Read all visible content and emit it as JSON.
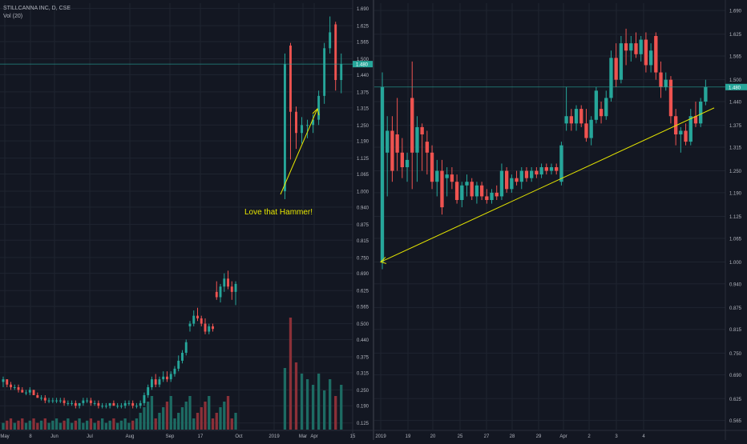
{
  "header": {
    "symbol": "STILLCANNA INC, D, CSE",
    "volume_label": "Vol (20)"
  },
  "annotation": "Love that Hammer!",
  "colors": {
    "background": "#131722",
    "grid": "#1f2430",
    "up": "#26a69a",
    "down": "#ef5350",
    "up_volume": "#1d6b63",
    "down_volume": "#8b3038",
    "annotation": "#e6e600",
    "trendline": "#e6e600",
    "price_line": "#26a69a",
    "axis_text": "#b2b5be"
  },
  "chart_data": [
    {
      "type": "candlestick",
      "pane": "left",
      "interval": "D",
      "y_ticks": [
        "1.690",
        "1.625",
        "1.565",
        "1.500",
        "1.440",
        "1.375",
        "1.315",
        "1.250",
        "1.190",
        "1.125",
        "1.065",
        "1.000",
        "0.940",
        "0.875",
        "0.815",
        "0.750",
        "0.690",
        "0.625",
        "0.565",
        "0.500",
        "0.440",
        "0.375",
        "0.315",
        "0.250",
        "0.190",
        "0.125"
      ],
      "ylim": [
        0.1,
        1.71
      ],
      "x_ticks": [
        "May",
        "8",
        "Jun",
        "Jul",
        "Aug",
        "Sep",
        "17",
        "Oct",
        "2019",
        "Mar",
        "Apr",
        "15"
      ],
      "last_price": "1.480",
      "candles_summary": "2018 low-price base (0.17–0.29), rally Sep–Oct to ~0.68, gap to 2019 with hammer at ~1.00 then up to ~1.65",
      "candles": [
        {
          "o": 0.28,
          "h": 0.3,
          "l": 0.26,
          "c": 0.29
        },
        {
          "o": 0.29,
          "h": 0.29,
          "l": 0.26,
          "c": 0.27
        },
        {
          "o": 0.27,
          "h": 0.28,
          "l": 0.25,
          "c": 0.26
        },
        {
          "o": 0.26,
          "h": 0.27,
          "l": 0.25,
          "c": 0.26
        },
        {
          "o": 0.26,
          "h": 0.27,
          "l": 0.24,
          "c": 0.25
        },
        {
          "o": 0.25,
          "h": 0.26,
          "l": 0.24,
          "c": 0.24
        },
        {
          "o": 0.24,
          "h": 0.25,
          "l": 0.23,
          "c": 0.24
        },
        {
          "o": 0.24,
          "h": 0.26,
          "l": 0.23,
          "c": 0.25
        },
        {
          "o": 0.25,
          "h": 0.25,
          "l": 0.23,
          "c": 0.23
        },
        {
          "o": 0.23,
          "h": 0.24,
          "l": 0.22,
          "c": 0.22
        },
        {
          "o": 0.22,
          "h": 0.23,
          "l": 0.21,
          "c": 0.22
        },
        {
          "o": 0.22,
          "h": 0.23,
          "l": 0.2,
          "c": 0.21
        },
        {
          "o": 0.21,
          "h": 0.22,
          "l": 0.2,
          "c": 0.21
        },
        {
          "o": 0.21,
          "h": 0.22,
          "l": 0.2,
          "c": 0.21
        },
        {
          "o": 0.21,
          "h": 0.22,
          "l": 0.2,
          "c": 0.21
        },
        {
          "o": 0.21,
          "h": 0.22,
          "l": 0.2,
          "c": 0.21
        },
        {
          "o": 0.21,
          "h": 0.22,
          "l": 0.19,
          "c": 0.2
        },
        {
          "o": 0.2,
          "h": 0.21,
          "l": 0.19,
          "c": 0.2
        },
        {
          "o": 0.2,
          "h": 0.21,
          "l": 0.19,
          "c": 0.2
        },
        {
          "o": 0.2,
          "h": 0.21,
          "l": 0.18,
          "c": 0.19
        },
        {
          "o": 0.19,
          "h": 0.2,
          "l": 0.18,
          "c": 0.2
        },
        {
          "o": 0.2,
          "h": 0.22,
          "l": 0.19,
          "c": 0.21
        },
        {
          "o": 0.21,
          "h": 0.22,
          "l": 0.2,
          "c": 0.21
        },
        {
          "o": 0.21,
          "h": 0.22,
          "l": 0.19,
          "c": 0.2
        },
        {
          "o": 0.2,
          "h": 0.21,
          "l": 0.19,
          "c": 0.2
        },
        {
          "o": 0.2,
          "h": 0.21,
          "l": 0.18,
          "c": 0.19
        },
        {
          "o": 0.19,
          "h": 0.2,
          "l": 0.18,
          "c": 0.19
        },
        {
          "o": 0.19,
          "h": 0.2,
          "l": 0.18,
          "c": 0.19
        },
        {
          "o": 0.19,
          "h": 0.2,
          "l": 0.18,
          "c": 0.2
        },
        {
          "o": 0.2,
          "h": 0.21,
          "l": 0.19,
          "c": 0.19
        },
        {
          "o": 0.19,
          "h": 0.2,
          "l": 0.18,
          "c": 0.19
        },
        {
          "o": 0.19,
          "h": 0.2,
          "l": 0.18,
          "c": 0.19
        },
        {
          "o": 0.19,
          "h": 0.21,
          "l": 0.18,
          "c": 0.2
        },
        {
          "o": 0.2,
          "h": 0.21,
          "l": 0.19,
          "c": 0.2
        },
        {
          "o": 0.2,
          "h": 0.21,
          "l": 0.18,
          "c": 0.19
        },
        {
          "o": 0.19,
          "h": 0.2,
          "l": 0.18,
          "c": 0.19
        },
        {
          "o": 0.19,
          "h": 0.21,
          "l": 0.18,
          "c": 0.2
        },
        {
          "o": 0.2,
          "h": 0.24,
          "l": 0.19,
          "c": 0.23
        },
        {
          "o": 0.23,
          "h": 0.27,
          "l": 0.22,
          "c": 0.26
        },
        {
          "o": 0.26,
          "h": 0.3,
          "l": 0.25,
          "c": 0.29
        },
        {
          "o": 0.29,
          "h": 0.31,
          "l": 0.26,
          "c": 0.27
        },
        {
          "o": 0.27,
          "h": 0.3,
          "l": 0.26,
          "c": 0.29
        },
        {
          "o": 0.29,
          "h": 0.32,
          "l": 0.28,
          "c": 0.3
        },
        {
          "o": 0.3,
          "h": 0.32,
          "l": 0.28,
          "c": 0.29
        },
        {
          "o": 0.29,
          "h": 0.32,
          "l": 0.28,
          "c": 0.31
        },
        {
          "o": 0.31,
          "h": 0.34,
          "l": 0.3,
          "c": 0.33
        },
        {
          "o": 0.33,
          "h": 0.38,
          "l": 0.32,
          "c": 0.36
        },
        {
          "o": 0.36,
          "h": 0.4,
          "l": 0.35,
          "c": 0.39
        },
        {
          "o": 0.39,
          "h": 0.44,
          "l": 0.38,
          "c": 0.43
        },
        {
          "o": 0.49,
          "h": 0.51,
          "l": 0.47,
          "c": 0.5
        },
        {
          "o": 0.5,
          "h": 0.55,
          "l": 0.49,
          "c": 0.53
        },
        {
          "o": 0.53,
          "h": 0.56,
          "l": 0.51,
          "c": 0.52
        },
        {
          "o": 0.52,
          "h": 0.53,
          "l": 0.49,
          "c": 0.5
        },
        {
          "o": 0.5,
          "h": 0.52,
          "l": 0.46,
          "c": 0.47
        },
        {
          "o": 0.47,
          "h": 0.5,
          "l": 0.46,
          "c": 0.49
        },
        {
          "o": 0.49,
          "h": 0.5,
          "l": 0.47,
          "c": 0.48
        },
        {
          "o": 0.62,
          "h": 0.66,
          "l": 0.59,
          "c": 0.6
        },
        {
          "o": 0.6,
          "h": 0.65,
          "l": 0.58,
          "c": 0.64
        },
        {
          "o": 0.64,
          "h": 0.69,
          "l": 0.62,
          "c": 0.67
        },
        {
          "o": 0.67,
          "h": 0.7,
          "l": 0.63,
          "c": 0.64
        },
        {
          "o": 0.64,
          "h": 0.66,
          "l": 0.59,
          "c": 0.62
        },
        {
          "o": 0.62,
          "h": 0.66,
          "l": 0.57,
          "c": 0.65
        },
        {
          "o": 1.0,
          "h": 1.52,
          "l": 0.97,
          "c": 1.48
        },
        {
          "o": 1.55,
          "h": 1.56,
          "l": 1.12,
          "c": 1.3
        },
        {
          "o": 1.3,
          "h": 1.32,
          "l": 1.16,
          "c": 1.22
        },
        {
          "o": 1.22,
          "h": 1.28,
          "l": 1.18,
          "c": 1.25
        },
        {
          "o": 1.25,
          "h": 1.27,
          "l": 1.2,
          "c": 1.25
        },
        {
          "o": 1.25,
          "h": 1.29,
          "l": 1.22,
          "c": 1.27
        },
        {
          "o": 1.27,
          "h": 1.38,
          "l": 1.25,
          "c": 1.36
        },
        {
          "o": 1.36,
          "h": 1.56,
          "l": 1.33,
          "c": 1.54
        },
        {
          "o": 1.54,
          "h": 1.66,
          "l": 1.52,
          "c": 1.6
        },
        {
          "o": 1.63,
          "h": 1.64,
          "l": 1.38,
          "c": 1.42
        },
        {
          "o": 1.42,
          "h": 1.52,
          "l": 1.37,
          "c": 1.48
        }
      ]
    },
    {
      "type": "candlestick",
      "pane": "right",
      "interval": "D",
      "y_ticks": [
        "1.690",
        "1.625",
        "1.565",
        "1.500",
        "1.440",
        "1.375",
        "1.315",
        "1.250",
        "1.190",
        "1.125",
        "1.065",
        "1.000",
        "0.940",
        "0.875",
        "0.815",
        "0.750",
        "0.690",
        "0.625",
        "0.565"
      ],
      "ylim": [
        0.54,
        1.71
      ],
      "x_ticks": [
        "2019",
        "19",
        "20",
        "25",
        "27",
        "28",
        "29",
        "Apr",
        "2",
        "3",
        "4"
      ],
      "last_price": "1.480",
      "trendline": {
        "from": {
          "x": 1,
          "y": 1.0
        },
        "to": {
          "x": 88,
          "y": 1.37
        }
      },
      "candles": [
        {
          "o": 1.0,
          "h": 1.52,
          "l": 0.98,
          "c": 1.48
        },
        {
          "o": 1.3,
          "h": 1.4,
          "l": 1.18,
          "c": 1.36
        },
        {
          "o": 1.36,
          "h": 1.4,
          "l": 1.22,
          "c": 1.25
        },
        {
          "o": 1.35,
          "h": 1.45,
          "l": 1.25,
          "c": 1.3
        },
        {
          "o": 1.3,
          "h": 1.34,
          "l": 1.23,
          "c": 1.26
        },
        {
          "o": 1.26,
          "h": 1.3,
          "l": 1.22,
          "c": 1.28
        },
        {
          "o": 1.45,
          "h": 1.55,
          "l": 1.2,
          "c": 1.3
        },
        {
          "o": 1.3,
          "h": 1.4,
          "l": 1.22,
          "c": 1.37
        },
        {
          "o": 1.37,
          "h": 1.38,
          "l": 1.25,
          "c": 1.35
        },
        {
          "o": 1.33,
          "h": 1.36,
          "l": 1.24,
          "c": 1.3
        },
        {
          "o": 1.3,
          "h": 1.32,
          "l": 1.2,
          "c": 1.22
        },
        {
          "o": 1.22,
          "h": 1.28,
          "l": 1.18,
          "c": 1.25
        },
        {
          "o": 1.25,
          "h": 1.28,
          "l": 1.13,
          "c": 1.15
        },
        {
          "o": 1.23,
          "h": 1.26,
          "l": 1.18,
          "c": 1.24
        },
        {
          "o": 1.24,
          "h": 1.26,
          "l": 1.2,
          "c": 1.22
        },
        {
          "o": 1.22,
          "h": 1.24,
          "l": 1.16,
          "c": 1.17
        },
        {
          "o": 1.17,
          "h": 1.22,
          "l": 1.15,
          "c": 1.21
        },
        {
          "o": 1.21,
          "h": 1.24,
          "l": 1.18,
          "c": 1.22
        },
        {
          "o": 1.22,
          "h": 1.23,
          "l": 1.17,
          "c": 1.18
        },
        {
          "o": 1.18,
          "h": 1.22,
          "l": 1.16,
          "c": 1.21
        },
        {
          "o": 1.21,
          "h": 1.22,
          "l": 1.17,
          "c": 1.18
        },
        {
          "o": 1.18,
          "h": 1.2,
          "l": 1.16,
          "c": 1.17
        },
        {
          "o": 1.17,
          "h": 1.2,
          "l": 1.16,
          "c": 1.19
        },
        {
          "o": 1.19,
          "h": 1.21,
          "l": 1.17,
          "c": 1.18
        },
        {
          "o": 1.18,
          "h": 1.27,
          "l": 1.17,
          "c": 1.25
        },
        {
          "o": 1.25,
          "h": 1.26,
          "l": 1.19,
          "c": 1.2
        },
        {
          "o": 1.2,
          "h": 1.24,
          "l": 1.19,
          "c": 1.23
        },
        {
          "o": 1.23,
          "h": 1.25,
          "l": 1.21,
          "c": 1.22
        },
        {
          "o": 1.22,
          "h": 1.26,
          "l": 1.2,
          "c": 1.25
        },
        {
          "o": 1.25,
          "h": 1.26,
          "l": 1.22,
          "c": 1.23
        },
        {
          "o": 1.23,
          "h": 1.26,
          "l": 1.22,
          "c": 1.25
        },
        {
          "o": 1.25,
          "h": 1.26,
          "l": 1.23,
          "c": 1.24
        },
        {
          "o": 1.24,
          "h": 1.27,
          "l": 1.23,
          "c": 1.26
        },
        {
          "o": 1.26,
          "h": 1.27,
          "l": 1.24,
          "c": 1.25
        },
        {
          "o": 1.25,
          "h": 1.27,
          "l": 1.24,
          "c": 1.26
        },
        {
          "o": 1.26,
          "h": 1.27,
          "l": 1.24,
          "c": 1.25
        },
        {
          "o": 1.22,
          "h": 1.33,
          "l": 1.21,
          "c": 1.32
        },
        {
          "o": 1.38,
          "h": 1.48,
          "l": 1.36,
          "c": 1.4
        },
        {
          "o": 1.4,
          "h": 1.42,
          "l": 1.36,
          "c": 1.38
        },
        {
          "o": 1.38,
          "h": 1.43,
          "l": 1.36,
          "c": 1.42
        },
        {
          "o": 1.42,
          "h": 1.43,
          "l": 1.37,
          "c": 1.38
        },
        {
          "o": 1.38,
          "h": 1.42,
          "l": 1.33,
          "c": 1.34
        },
        {
          "o": 1.34,
          "h": 1.4,
          "l": 1.32,
          "c": 1.39
        },
        {
          "o": 1.39,
          "h": 1.48,
          "l": 1.38,
          "c": 1.47
        },
        {
          "o": 1.42,
          "h": 1.44,
          "l": 1.38,
          "c": 1.4
        },
        {
          "o": 1.4,
          "h": 1.47,
          "l": 1.39,
          "c": 1.45
        },
        {
          "o": 1.45,
          "h": 1.58,
          "l": 1.44,
          "c": 1.56
        },
        {
          "o": 1.56,
          "h": 1.6,
          "l": 1.48,
          "c": 1.5
        },
        {
          "o": 1.5,
          "h": 1.62,
          "l": 1.49,
          "c": 1.6
        },
        {
          "o": 1.6,
          "h": 1.64,
          "l": 1.54,
          "c": 1.58
        },
        {
          "o": 1.58,
          "h": 1.62,
          "l": 1.55,
          "c": 1.6
        },
        {
          "o": 1.6,
          "h": 1.63,
          "l": 1.56,
          "c": 1.57
        },
        {
          "o": 1.57,
          "h": 1.62,
          "l": 1.55,
          "c": 1.61
        },
        {
          "o": 1.61,
          "h": 1.63,
          "l": 1.52,
          "c": 1.54
        },
        {
          "o": 1.54,
          "h": 1.6,
          "l": 1.52,
          "c": 1.58
        },
        {
          "o": 1.62,
          "h": 1.63,
          "l": 1.5,
          "c": 1.52
        },
        {
          "o": 1.52,
          "h": 1.55,
          "l": 1.45,
          "c": 1.48
        },
        {
          "o": 1.48,
          "h": 1.52,
          "l": 1.47,
          "c": 1.5
        },
        {
          "o": 1.5,
          "h": 1.51,
          "l": 1.38,
          "c": 1.4
        },
        {
          "o": 1.4,
          "h": 1.42,
          "l": 1.32,
          "c": 1.35
        },
        {
          "o": 1.35,
          "h": 1.37,
          "l": 1.3,
          "c": 1.36
        },
        {
          "o": 1.36,
          "h": 1.38,
          "l": 1.32,
          "c": 1.33
        },
        {
          "o": 1.33,
          "h": 1.42,
          "l": 1.32,
          "c": 1.4
        },
        {
          "o": 1.4,
          "h": 1.44,
          "l": 1.37,
          "c": 1.38
        },
        {
          "o": 1.38,
          "h": 1.45,
          "l": 1.37,
          "c": 1.44
        },
        {
          "o": 1.44,
          "h": 1.5,
          "l": 1.43,
          "c": 1.48
        }
      ]
    }
  ]
}
